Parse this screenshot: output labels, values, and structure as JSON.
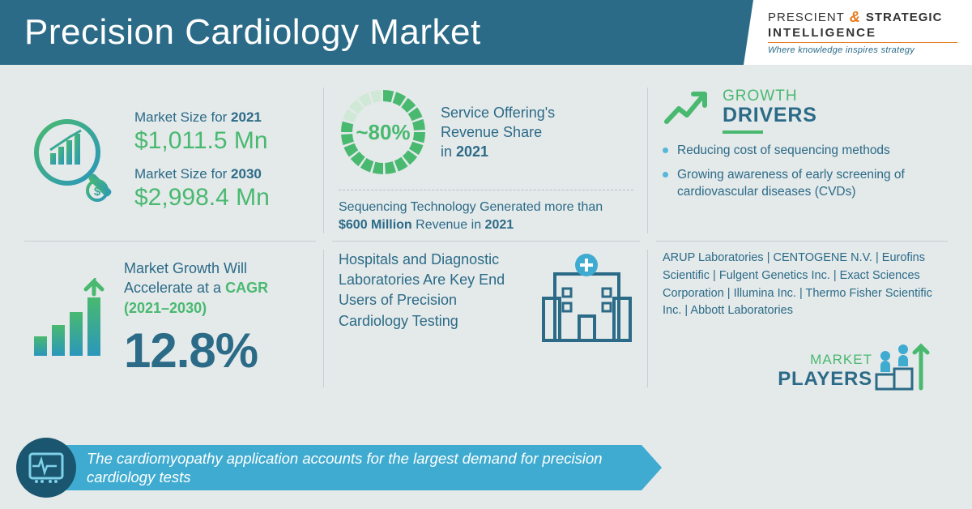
{
  "header": {
    "title": "Precision Cardiology Market"
  },
  "logo": {
    "p1": "PRESCIENT",
    "amp": "&",
    "p2": "STRATEGIC",
    "p3": "INTELLIGENCE",
    "sub": "Where knowledge inspires strategy"
  },
  "market_size": {
    "y1_label_pre": "Market Size for ",
    "y1_year": "2021",
    "y1_val": "$1,011.5 Mn",
    "y2_label_pre": "Market Size for ",
    "y2_year": "2030",
    "y2_val": "$2,998.4 Mn"
  },
  "donut": {
    "pct_text": "~80%",
    "pct": 80,
    "label_l1": "Service Offering's",
    "label_l2": "Revenue Share",
    "label_l3_pre": "in ",
    "label_l3_b": "2021",
    "seg_fill": "#49b970",
    "seg_empty": "#d0e8d6",
    "seg_count": 20
  },
  "seq": {
    "pre": "Sequencing Technology Generated more than ",
    "b": "$600 Million",
    "mid": " Revenue in ",
    "yr": "2021"
  },
  "growth": {
    "heading1": "GROWTH",
    "heading2": "DRIVERS",
    "items": [
      "Reducing cost of sequencing methods",
      "Growing awareness of early screening of cardiovascular diseases (CVDs)"
    ]
  },
  "cagr": {
    "pre": "Market Growth Will Accelerate at a ",
    "hl": "CAGR (2021–2030)",
    "val": "12.8%"
  },
  "endusers": {
    "text": "Hospitals and Diagnostic Laboratories Are Key End Users of Precision Cardiology Testing"
  },
  "players": {
    "list": "ARUP Laboratories | CENTOGENE N.V. | Eurofins Scientific | Fulgent Genetics Inc. | Exact Sciences Corporation | Illumina Inc. | Thermo Fisher Scientific Inc. | Abbott Laboratories",
    "h1": "MARKET",
    "h2": "PLAYERS"
  },
  "banner": {
    "text": "The cardiomyopathy application accounts for the largest demand for precision cardiology tests"
  },
  "colors": {
    "teal": "#2b6b87",
    "green": "#49b970",
    "lightblue": "#3fabd0"
  }
}
